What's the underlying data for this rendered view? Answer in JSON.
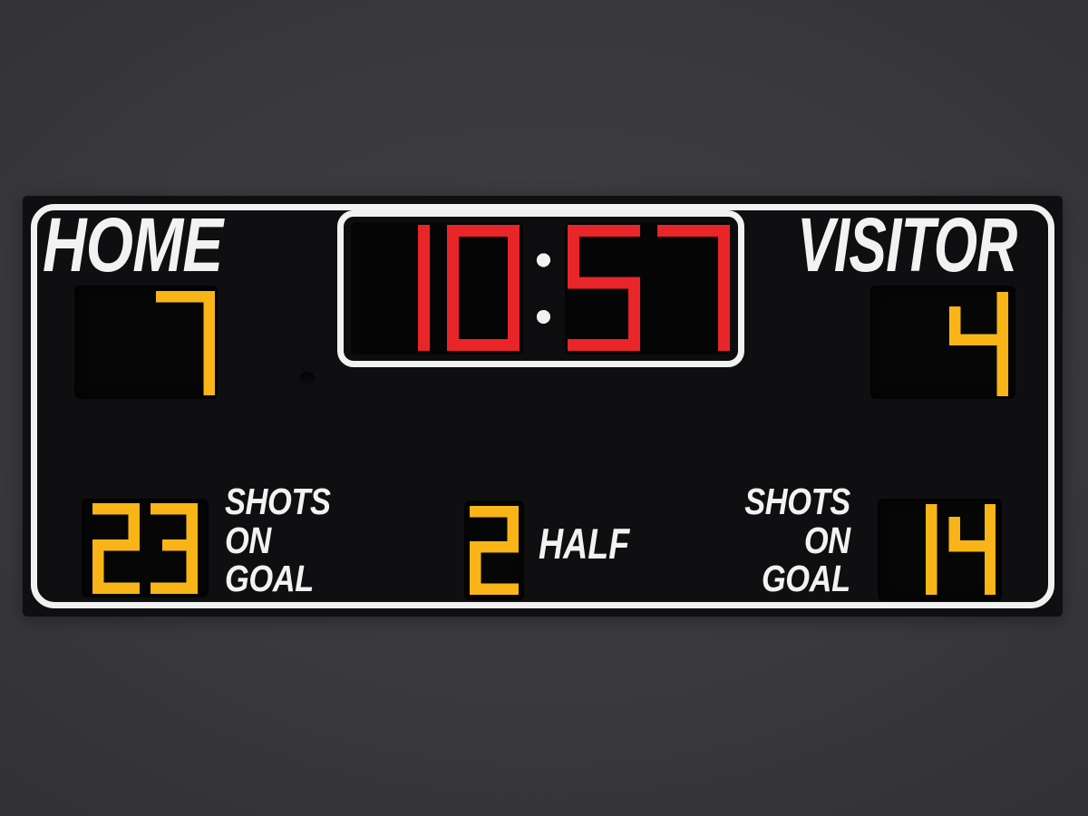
{
  "scoreboard": {
    "home": {
      "label": "HOME",
      "score": "7",
      "shots": "23",
      "shots_on_goal_label": [
        "SHOTS",
        "ON",
        "GOAL"
      ]
    },
    "visitor": {
      "label": "VISITOR",
      "score": "4",
      "shots": "14",
      "shots_on_goal_label": [
        "SHOTS",
        "ON",
        "GOAL"
      ]
    },
    "clock": {
      "time": "10:57"
    },
    "period": {
      "value": "2",
      "label": "HALF"
    }
  },
  "colors": {
    "digit_amber": "#F9B517",
    "digit_red": "#E92529",
    "colon_white": "#F1F1F1",
    "frame_white": "#F1F1F1",
    "board_black": "#0F0F11",
    "panel_black": "#060607",
    "background_gray": "#3A3A3D"
  }
}
